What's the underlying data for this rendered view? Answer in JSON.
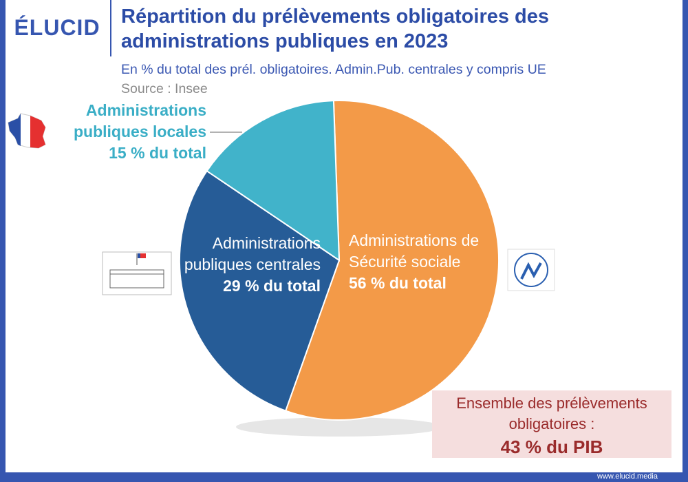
{
  "brand": "ÉLUCID",
  "footer": "www.elucid.media",
  "chart_data": {
    "type": "pie",
    "title": "Répartition du prélèvements obligatoires des administrations publiques en 2023",
    "subtitle": "En % du total des prél. obligatoires. Admin.Pub. centrales y compris UE",
    "source": "Source : Insee",
    "categories": [
      "Administrations de Sécurité sociale",
      "Administrations publiques centrales",
      "Administrations publiques locales"
    ],
    "values": [
      56,
      29,
      15
    ],
    "value_labels": [
      "56 % du total",
      "29 % du total",
      "15 % du total"
    ],
    "colors": [
      "#f39a48",
      "#265c97",
      "#41b3ca"
    ],
    "annotations": [
      "Ensemble des prélèvements obligatoires :",
      "43 % du PIB"
    ]
  }
}
